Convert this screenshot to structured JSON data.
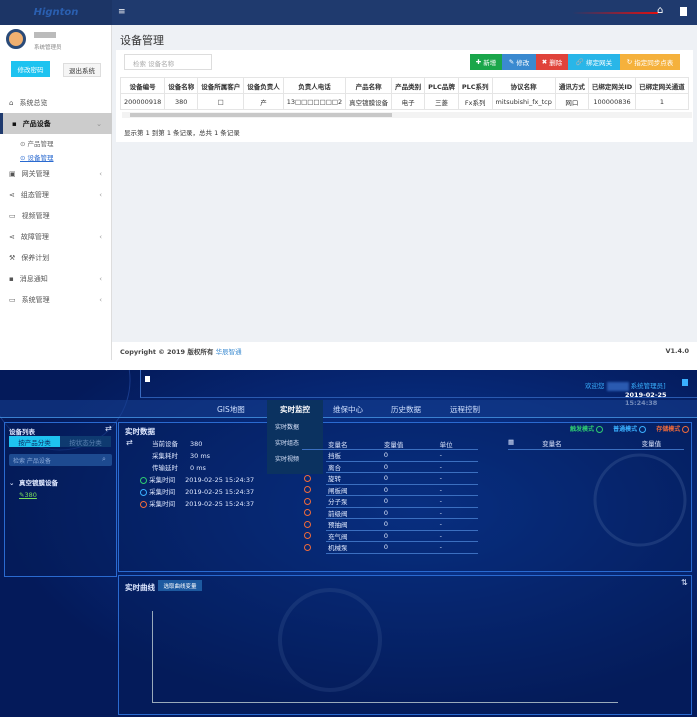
{
  "admin": {
    "logo": "Hignton",
    "user": {
      "name": "",
      "role": "系统管理员"
    },
    "buttons": {
      "change_password": "修改密码",
      "logout": "退出系统"
    },
    "menu": [
      {
        "label": "系统总览",
        "icon": "home-icon",
        "chev": ""
      },
      {
        "label": "产品设备",
        "icon": "book-icon",
        "chev": "⌄"
      },
      {
        "label": "网关管理",
        "icon": "gateway-icon",
        "chev": "‹"
      },
      {
        "label": "组态管理",
        "icon": "share-icon",
        "chev": "‹"
      },
      {
        "label": "视频管理",
        "icon": "monitor-icon",
        "chev": ""
      },
      {
        "label": "故障管理",
        "icon": "share-icon",
        "chev": "‹"
      },
      {
        "label": "保养计划",
        "icon": "wrench-icon",
        "chev": ""
      },
      {
        "label": "消息通知",
        "icon": "message-icon",
        "chev": "‹"
      },
      {
        "label": "系统管理",
        "icon": "monitor-icon",
        "chev": "‹"
      }
    ],
    "submenu": [
      "产品管理",
      "设备管理"
    ],
    "page_title": "设备管理",
    "search_placeholder": "检索 设备名称",
    "toolbar": {
      "add": "新增",
      "edit": "修改",
      "delete": "删除",
      "bind": "绑定网关",
      "sync": "指定同步点表"
    },
    "columns": [
      "设备编号",
      "设备名称",
      "设备所属客户",
      "设备负责人",
      "负责人电话",
      "产品名称",
      "产品类别",
      "PLC品牌",
      "PLC系列",
      "协议名称",
      "通讯方式",
      "已绑定网关ID",
      "已绑定网关通道"
    ],
    "rows": [
      [
        "200000918",
        "380",
        "□",
        "产",
        "13□□□□□□□2",
        "真空镀膜设备",
        "电子",
        "三菱",
        "Fx系列",
        "mitsubishi_fx_tcp",
        "网口",
        "100000836",
        "1"
      ]
    ],
    "summary": "显示第 1 到第 1 条记录，总共 1 条记录",
    "footer": {
      "copyright": "Copyright © 2019 版权所有",
      "company": "华辰智通",
      "version": "V1.4.0"
    },
    "colors": {
      "header": "#1f3a6e",
      "add": "#1aa64a",
      "edit": "#3a8ad0",
      "delete": "#e0433a",
      "bind": "#29b6e8",
      "sync": "#f5b13c"
    }
  },
  "monitor": {
    "welcome": "欢迎您",
    "user": "系统管理员]",
    "datetime": "2019-02-25 15:24:38",
    "nav": [
      "GIS地图",
      "实时监控",
      "维保中心",
      "历史数据",
      "远程控制"
    ],
    "dropdown": [
      "实时数据",
      "实时组态",
      "实时视频"
    ],
    "device_list": {
      "title": "设备列表",
      "tabs": [
        "按产品分类",
        "按状态分类"
      ],
      "search_placeholder": "检索 产品设备",
      "group": "真空镀膜设备",
      "device": "380"
    },
    "realtime": {
      "title": "实时数据",
      "info": [
        {
          "label": "当前设备",
          "value": "380"
        },
        {
          "label": "采集耗时",
          "value": "30 ms"
        },
        {
          "label": "传输延时",
          "value": "0 ms"
        }
      ],
      "times": [
        {
          "label": "采集时间",
          "value": "2019-02-25 15:24:37",
          "color": "#2ecc71"
        },
        {
          "label": "采集时间",
          "value": "2019-02-25 15:24:37",
          "color": "#3ab0ff"
        },
        {
          "label": "采集时间",
          "value": "2019-02-25 15:24:37",
          "color": "#f06a3a"
        }
      ],
      "modes": [
        {
          "label": "触发模式",
          "color": "#2ecc71"
        },
        {
          "label": "普通模式",
          "color": "#3ab0ff"
        },
        {
          "label": "存储模式",
          "color": "#f06a3a"
        }
      ],
      "headers": [
        "变量名",
        "变量值",
        "单位"
      ],
      "vars": [
        [
          "挡板",
          "0",
          "-"
        ],
        [
          "离合",
          "0",
          "-"
        ],
        [
          "旋转",
          "0",
          "-"
        ],
        [
          "闸板阀",
          "0",
          "-"
        ],
        [
          "分子泵",
          "0",
          "-"
        ],
        [
          "前级阀",
          "0",
          "-"
        ],
        [
          "预抽阀",
          "0",
          "-"
        ],
        [
          "充气阀",
          "0",
          "-"
        ],
        [
          "机械泵",
          "0",
          "-"
        ]
      ],
      "right_headers": [
        "变量名",
        "变量值"
      ]
    },
    "curve": {
      "title": "实时曲线",
      "button": "选取曲线变量"
    }
  }
}
